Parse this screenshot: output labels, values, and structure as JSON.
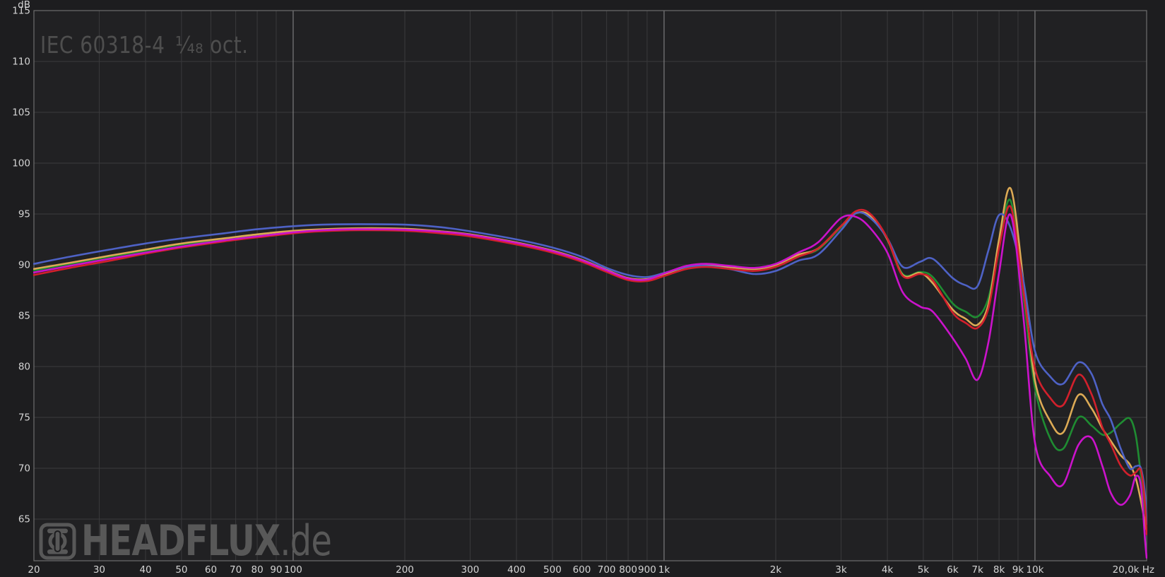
{
  "header": {
    "standard": "IEC 60318-4",
    "smoothing": "¹⁄₄₈ oct."
  },
  "watermark": {
    "brand": "HEADFLUX",
    "tld": ".de"
  },
  "colors": {
    "background": "#1d1d1f",
    "plot_background": "#212123",
    "grid_minor": "#3a3a3c",
    "grid_major": "#8f8f8f",
    "border": "#6d6d6d",
    "tick_text": "#d4d4d4",
    "title_text": "#4e4e4e",
    "watermark_gray": "#585858"
  },
  "chart_data": {
    "type": "line",
    "title": "IEC 60318-4 ¹⁄₄₈ oct.",
    "xlabel": "Hz",
    "ylabel": "dB",
    "x_scale": "log",
    "xlim": [
      20,
      20000
    ],
    "ylim": [
      61,
      115
    ],
    "grid": "on",
    "legend_position": "none",
    "y_unit_label": "dB",
    "x_ticks": [
      {
        "f": 20,
        "label": "20"
      },
      {
        "f": 30,
        "label": "30"
      },
      {
        "f": 40,
        "label": "40"
      },
      {
        "f": 50,
        "label": "50"
      },
      {
        "f": 60,
        "label": "60"
      },
      {
        "f": 70,
        "label": "70"
      },
      {
        "f": 80,
        "label": "80"
      },
      {
        "f": 90,
        "label": "90"
      },
      {
        "f": 100,
        "label": "100",
        "major": true
      },
      {
        "f": 200,
        "label": "200"
      },
      {
        "f": 300,
        "label": "300"
      },
      {
        "f": 400,
        "label": "400"
      },
      {
        "f": 500,
        "label": "500"
      },
      {
        "f": 600,
        "label": "600"
      },
      {
        "f": 700,
        "label": "700"
      },
      {
        "f": 800,
        "label": "800"
      },
      {
        "f": 900,
        "label": "900"
      },
      {
        "f": 1000,
        "label": "1k",
        "major": true
      },
      {
        "f": 2000,
        "label": "2k"
      },
      {
        "f": 3000,
        "label": "3k"
      },
      {
        "f": 4000,
        "label": "4k"
      },
      {
        "f": 5000,
        "label": "5k"
      },
      {
        "f": 6000,
        "label": "6k"
      },
      {
        "f": 7000,
        "label": "7k"
      },
      {
        "f": 8000,
        "label": "8k"
      },
      {
        "f": 9000,
        "label": "9k"
      },
      {
        "f": 10000,
        "label": "10k",
        "major": true
      },
      {
        "f": 20000,
        "label": "20,0k Hz"
      }
    ],
    "y_ticks": [
      115,
      110,
      105,
      100,
      95,
      90,
      85,
      80,
      75,
      70,
      65
    ],
    "freq": [
      20,
      25,
      32,
      40,
      50,
      65,
      80,
      100,
      120,
      150,
      200,
      250,
      300,
      400,
      500,
      600,
      700,
      800,
      900,
      1000,
      1150,
      1300,
      1500,
      1750,
      2000,
      2300,
      2600,
      3000,
      3300,
      3600,
      4000,
      4400,
      4900,
      5300,
      6000,
      6500,
      7000,
      7500,
      8000,
      8600,
      9300,
      10000,
      11000,
      11900,
      13100,
      14200,
      15200,
      16000,
      17000,
      18000,
      18700,
      19300,
      19800,
      20000
    ],
    "series": [
      {
        "name": "green-trace",
        "color": "#1f8c32",
        "values": [
          89.45,
          90.1,
          90.8,
          91.4,
          92.0,
          92.5,
          92.9,
          93.2,
          93.4,
          93.5,
          93.45,
          93.2,
          92.9,
          92.1,
          91.3,
          90.4,
          89.4,
          88.6,
          88.5,
          89.0,
          89.7,
          89.9,
          89.7,
          89.5,
          89.9,
          90.9,
          91.5,
          93.7,
          95.1,
          94.7,
          92.6,
          89.1,
          89.3,
          88.8,
          86.2,
          85.4,
          84.9,
          86.8,
          92.0,
          96.3,
          87.0,
          77.9,
          72.9,
          71.9,
          75.0,
          74.2,
          73.3,
          73.5,
          74.4,
          74.9,
          73.2,
          69.3,
          65.8,
          64.8
        ]
      },
      {
        "name": "orange-trace",
        "color": "#dcaa55",
        "values": [
          89.6,
          90.2,
          90.9,
          91.5,
          92.1,
          92.6,
          93.0,
          93.35,
          93.5,
          93.6,
          93.55,
          93.3,
          93.0,
          92.2,
          91.4,
          90.5,
          89.5,
          88.7,
          88.6,
          89.1,
          89.8,
          90.0,
          89.8,
          89.6,
          90.0,
          91.0,
          91.6,
          93.8,
          95.1,
          94.8,
          92.5,
          89.0,
          89.2,
          88.2,
          85.6,
          84.7,
          84.1,
          86.2,
          92.5,
          97.5,
          88.5,
          78.6,
          74.6,
          73.5,
          77.2,
          75.9,
          73.9,
          72.7,
          71.3,
          70.4,
          69.0,
          66.8,
          64.6,
          63.8
        ]
      },
      {
        "name": "blue-trace",
        "color": "#4e62c6",
        "values": [
          90.1,
          90.8,
          91.5,
          92.1,
          92.6,
          93.1,
          93.5,
          93.8,
          93.95,
          94.0,
          93.95,
          93.7,
          93.3,
          92.5,
          91.7,
          90.8,
          89.7,
          89.0,
          88.8,
          89.2,
          89.8,
          89.9,
          89.6,
          89.1,
          89.4,
          90.4,
          91.0,
          93.4,
          95.1,
          94.6,
          92.6,
          89.8,
          90.3,
          90.6,
          88.7,
          88.0,
          87.9,
          91.5,
          94.9,
          93.6,
          88.5,
          81.5,
          79.0,
          78.3,
          80.4,
          79.3,
          76.3,
          74.8,
          72.0,
          70.0,
          70.2,
          70.0,
          67.5,
          64.5
        ]
      },
      {
        "name": "red-trace",
        "color": "#d2202c",
        "values": [
          89.0,
          89.7,
          90.4,
          91.1,
          91.7,
          92.3,
          92.7,
          93.1,
          93.3,
          93.4,
          93.35,
          93.1,
          92.8,
          92.0,
          91.2,
          90.3,
          89.3,
          88.5,
          88.4,
          88.9,
          89.6,
          89.8,
          89.6,
          89.4,
          89.8,
          90.8,
          91.6,
          93.8,
          95.3,
          95.0,
          92.6,
          88.9,
          89.1,
          88.5,
          85.3,
          84.3,
          83.8,
          85.8,
          91.6,
          95.7,
          87.5,
          79.8,
          76.9,
          76.2,
          79.2,
          77.3,
          74.0,
          72.4,
          70.3,
          69.3,
          69.6,
          69.8,
          66.5,
          63.5
        ]
      },
      {
        "name": "magenta-trace",
        "color": "#cb13cb",
        "values": [
          89.25,
          89.9,
          90.6,
          91.2,
          91.8,
          92.4,
          92.8,
          93.2,
          93.4,
          93.5,
          93.45,
          93.25,
          92.95,
          92.15,
          91.35,
          90.45,
          89.45,
          88.65,
          88.55,
          89.15,
          89.9,
          90.1,
          89.9,
          89.7,
          90.1,
          91.2,
          92.2,
          94.6,
          94.7,
          93.6,
          91.2,
          87.3,
          85.9,
          85.4,
          82.8,
          80.8,
          78.7,
          82.5,
          89.2,
          94.9,
          85.0,
          72.5,
          69.2,
          68.4,
          72.3,
          73.0,
          70.2,
          67.6,
          66.4,
          67.3,
          69.2,
          68.3,
          63.0,
          61.2
        ]
      }
    ]
  }
}
